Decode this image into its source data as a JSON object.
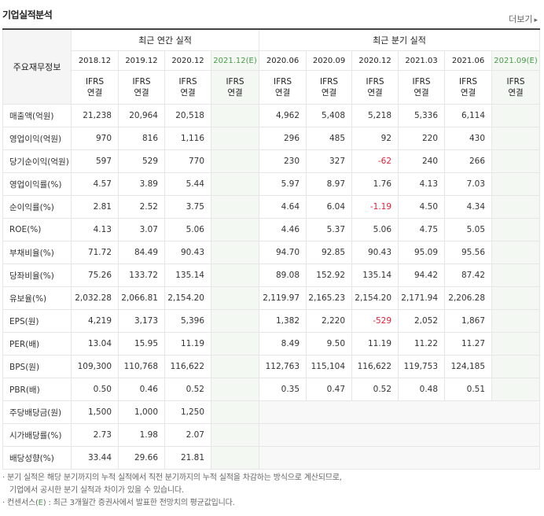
{
  "header": {
    "title": "기업실적분석",
    "more_label": "더보기",
    "more_arrow": "▸"
  },
  "table": {
    "metric_header": "주요재무정보",
    "annual_group": "최근 연간 실적",
    "quarter_group": "최근 분기 실적",
    "annual_periods": [
      "2018.12",
      "2019.12",
      "2020.12",
      "2021.12(E)"
    ],
    "quarter_periods": [
      "2020.06",
      "2020.09",
      "2020.12",
      "2021.03",
      "2021.06",
      "2021.09(E)"
    ],
    "basis_line1": "IFRS",
    "basis_line2": "연결",
    "rows": [
      {
        "label": "매출액(억원)",
        "annual": [
          "21,238",
          "20,964",
          "20,518",
          ""
        ],
        "quarter": [
          "4,962",
          "5,408",
          "5,218",
          "5,336",
          "6,114",
          ""
        ]
      },
      {
        "label": "영업이익(억원)",
        "annual": [
          "970",
          "816",
          "1,116",
          ""
        ],
        "quarter": [
          "296",
          "485",
          "92",
          "220",
          "430",
          ""
        ]
      },
      {
        "label": "당기순이익(억원)",
        "annual": [
          "597",
          "529",
          "770",
          ""
        ],
        "quarter": [
          "230",
          "327",
          "-62",
          "240",
          "266",
          ""
        ]
      },
      {
        "label": "영업이익률(%)",
        "annual": [
          "4.57",
          "3.89",
          "5.44",
          ""
        ],
        "quarter": [
          "5.97",
          "8.97",
          "1.76",
          "4.13",
          "7.03",
          ""
        ]
      },
      {
        "label": "순이익률(%)",
        "annual": [
          "2.81",
          "2.52",
          "3.75",
          ""
        ],
        "quarter": [
          "4.64",
          "6.04",
          "-1.19",
          "4.50",
          "4.34",
          ""
        ]
      },
      {
        "label": "ROE(%)",
        "annual": [
          "4.13",
          "3.07",
          "5.06",
          ""
        ],
        "quarter": [
          "4.46",
          "5.37",
          "5.06",
          "4.75",
          "5.05",
          ""
        ]
      },
      {
        "label": "부채비율(%)",
        "annual": [
          "71.72",
          "84.49",
          "90.43",
          ""
        ],
        "quarter": [
          "94.70",
          "92.85",
          "90.43",
          "95.09",
          "95.56",
          ""
        ]
      },
      {
        "label": "당좌비율(%)",
        "annual": [
          "75.26",
          "133.72",
          "135.14",
          ""
        ],
        "quarter": [
          "89.08",
          "152.92",
          "135.14",
          "94.42",
          "87.42",
          ""
        ]
      },
      {
        "label": "유보율(%)",
        "annual": [
          "2,032.28",
          "2,066.81",
          "2,154.20",
          ""
        ],
        "quarter": [
          "2,119.97",
          "2,165.23",
          "2,154.20",
          "2,171.94",
          "2,206.28",
          ""
        ]
      },
      {
        "label": "EPS(원)",
        "annual": [
          "4,219",
          "3,173",
          "5,396",
          ""
        ],
        "quarter": [
          "1,382",
          "2,220",
          "-529",
          "2,052",
          "1,867",
          ""
        ]
      },
      {
        "label": "PER(배)",
        "annual": [
          "13.04",
          "15.95",
          "11.19",
          ""
        ],
        "quarter": [
          "8.49",
          "9.50",
          "11.19",
          "11.22",
          "11.27",
          ""
        ]
      },
      {
        "label": "BPS(원)",
        "annual": [
          "109,300",
          "110,768",
          "116,622",
          ""
        ],
        "quarter": [
          "112,763",
          "115,104",
          "116,622",
          "119,753",
          "124,185",
          ""
        ]
      },
      {
        "label": "PBR(배)",
        "annual": [
          "0.50",
          "0.46",
          "0.52",
          ""
        ],
        "quarter": [
          "0.35",
          "0.47",
          "0.52",
          "0.48",
          "0.51",
          ""
        ]
      },
      {
        "label": "주당배당금(원)",
        "annual": [
          "1,500",
          "1,000",
          "1,250",
          ""
        ],
        "quarter": null
      },
      {
        "label": "시가배당률(%)",
        "annual": [
          "2.73",
          "1.98",
          "2.07",
          ""
        ],
        "quarter": null
      },
      {
        "label": "배당성향(%)",
        "annual": [
          "33.44",
          "29.66",
          "21.81",
          ""
        ],
        "quarter": null
      }
    ]
  },
  "notes": {
    "line1": "· 분기 실적은 해당 분기까지의 누적 실적에서 직전 분기까지의 누적 실적을 차감하는 방식으로 계산되므로,",
    "line2": "기업에서 공시한 분기 실적과 차이가 있을 수 있습니다.",
    "line3_pre": "· 컨센서스(",
    "line3_mark": "E",
    "line3_post": ") : 최근 3개월간 증권사에서 발표한 전망치의 평균값입니다."
  },
  "colors": {
    "accent_orange": "#e8590c",
    "negative_red": "#e0203a",
    "estimate_green": "#4a9a4a",
    "estimate_bg": "#f3f8f3"
  }
}
